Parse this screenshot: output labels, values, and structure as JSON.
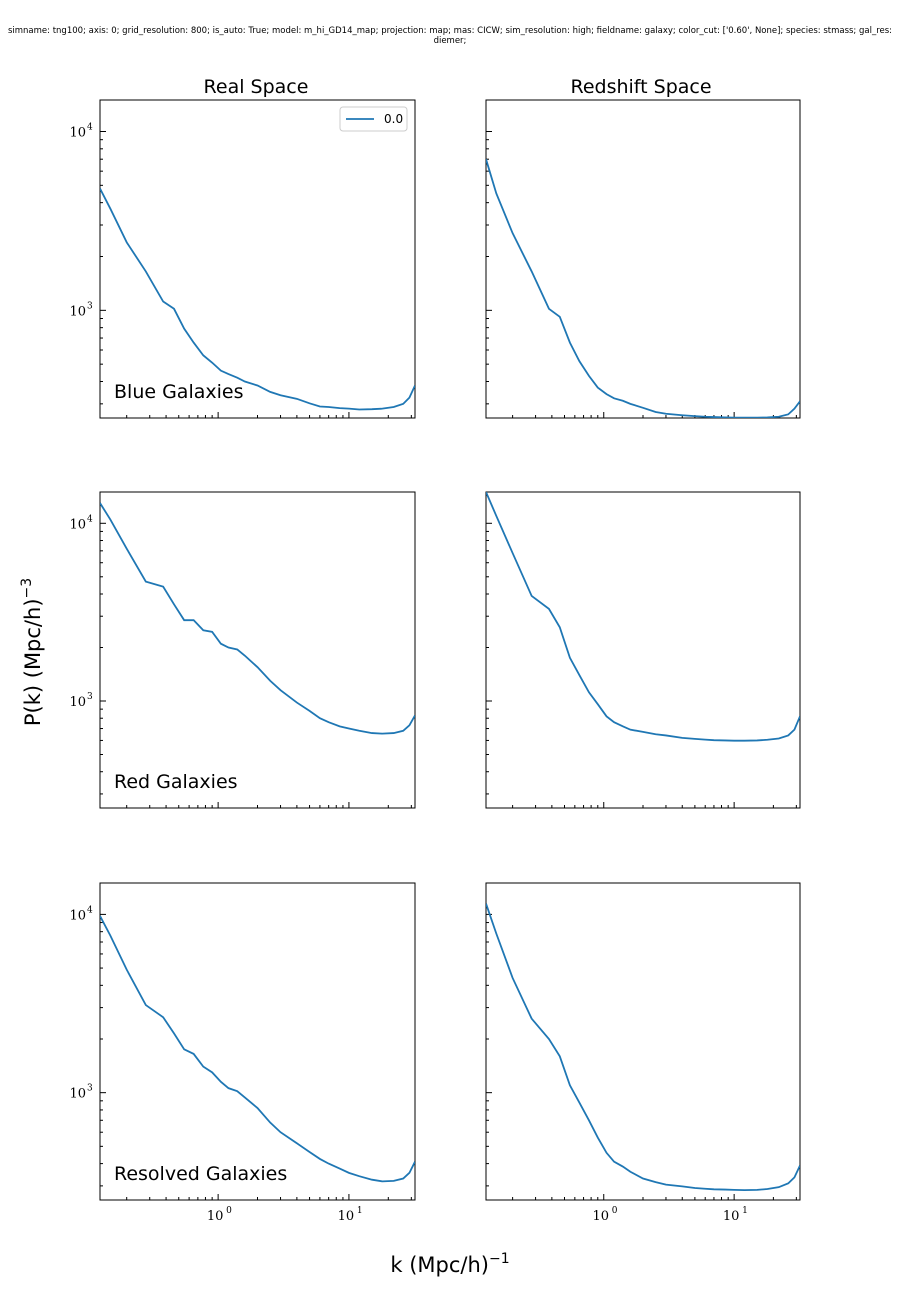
{
  "suptitle": {
    "line1": "simname: tng100; axis: 0; grid_resolution: 800; is_auto: True; model: m_hi_GD14_map; projection: map; mas: CICW; sim_resolution: high; fieldname: galaxy; color_cut: ['0.60', None]; species: stmass; gal_res:",
    "line2": "diemer;"
  },
  "colors": {
    "line": "#1f77b4",
    "axes": "#000000"
  },
  "chart_data": {
    "type": "line",
    "xscale": "log",
    "yscale": "log",
    "xlim": [
      0.125,
      32
    ],
    "ylabel": "P(k) (Mpc/h)^-3",
    "xlabel": "k (Mpc/h)^-1",
    "column_titles": [
      "Real Space",
      "Redshift Space"
    ],
    "row_labels": [
      "Blue Galaxies",
      "Red Galaxies",
      "Resolved Galaxies"
    ],
    "legend": {
      "placement": "upper-right",
      "panel": 0,
      "entries": [
        "0.0"
      ]
    },
    "x_ticks": [
      {
        "base": "10",
        "exp": "0",
        "value": 1
      },
      {
        "base": "10",
        "exp": "1",
        "value": 10
      }
    ],
    "y_ticks": [
      {
        "base": "10",
        "exp": "3",
        "value": 1000
      },
      {
        "base": "10",
        "exp": "4",
        "value": 10000
      }
    ],
    "panels": [
      {
        "row": "Blue Galaxies",
        "col": "Real Space",
        "ylim": [
          250,
          15000
        ],
        "series": [
          {
            "name": "0.0",
            "x": [
              0.125,
              0.15,
              0.2,
              0.28,
              0.38,
              0.46,
              0.55,
              0.65,
              0.77,
              0.9,
              1.05,
              1.2,
              1.4,
              1.6,
              2.0,
              2.5,
              3.0,
              4.0,
              5.0,
              6.0,
              7.0,
              8.5,
              10.0,
              12.0,
              15.0,
              18.0,
              22.0,
              26.0,
              29.0,
              32.0
            ],
            "y": [
              4800,
              3700,
              2400,
              1650,
              1120,
              1020,
              790,
              660,
              560,
              510,
              460,
              440,
              420,
              400,
              380,
              350,
              335,
              320,
              302,
              290,
              288,
              284,
              282,
              279,
              280,
              282,
              288,
              300,
              325,
              380
            ]
          }
        ]
      },
      {
        "row": "Blue Galaxies",
        "col": "Redshift Space",
        "ylim": [
          250,
          15000
        ],
        "series": [
          {
            "name": "0.0",
            "x": [
              0.125,
              0.15,
              0.2,
              0.28,
              0.38,
              0.46,
              0.55,
              0.65,
              0.77,
              0.9,
              1.05,
              1.2,
              1.4,
              1.6,
              2.0,
              2.5,
              3.0,
              4.0,
              5.0,
              6.0,
              7.0,
              8.5,
              10.0,
              12.0,
              15.0,
              18.0,
              22.0,
              26.0,
              29.0,
              32.0
            ],
            "y": [
              7000,
              4500,
              2700,
              1650,
              1020,
              920,
              660,
              520,
              430,
              370,
              340,
              322,
              312,
              300,
              285,
              270,
              264,
              259,
              256,
              254,
              253,
              252,
              251,
              251,
              251,
              252,
              254,
              262,
              282,
              310
            ]
          }
        ]
      },
      {
        "row": "Red Galaxies",
        "col": "Real Space",
        "ylim": [
          250,
          15000
        ],
        "series": [
          {
            "name": "0.0",
            "x": [
              0.125,
              0.15,
              0.2,
              0.28,
              0.38,
              0.46,
              0.55,
              0.65,
              0.77,
              0.9,
              1.05,
              1.2,
              1.4,
              1.6,
              2.0,
              2.5,
              3.0,
              4.0,
              5.0,
              6.0,
              7.0,
              8.5,
              10.0,
              12.0,
              15.0,
              18.0,
              22.0,
              26.0,
              29.0,
              32.0
            ],
            "y": [
              13000,
              10500,
              7200,
              4700,
              4400,
              3500,
              2850,
              2850,
              2500,
              2450,
              2100,
              2000,
              1950,
              1800,
              1550,
              1300,
              1150,
              980,
              880,
              800,
              760,
              720,
              700,
              680,
              660,
              655,
              660,
              680,
              730,
              830
            ]
          }
        ]
      },
      {
        "row": "Red Galaxies",
        "col": "Redshift Space",
        "ylim": [
          250,
          15000
        ],
        "series": [
          {
            "name": "0.0",
            "x": [
              0.125,
              0.15,
              0.2,
              0.28,
              0.38,
              0.46,
              0.55,
              0.65,
              0.77,
              0.9,
              1.05,
              1.2,
              1.4,
              1.6,
              2.0,
              2.5,
              3.0,
              4.0,
              5.0,
              6.0,
              7.0,
              8.5,
              10.0,
              12.0,
              15.0,
              18.0,
              22.0,
              26.0,
              29.0,
              32.0
            ],
            "y": [
              15000,
              11000,
              6800,
              3900,
              3300,
              2600,
              1750,
              1400,
              1120,
              960,
              820,
              760,
              720,
              690,
              670,
              650,
              640,
              620,
              612,
              606,
              602,
              600,
              598,
              598,
              600,
              605,
              615,
              640,
              690,
              820
            ]
          }
        ]
      },
      {
        "row": "Resolved Galaxies",
        "col": "Real Space",
        "ylim": [
          250,
          15000
        ],
        "series": [
          {
            "name": "0.0",
            "x": [
              0.125,
              0.15,
              0.2,
              0.28,
              0.38,
              0.46,
              0.55,
              0.65,
              0.77,
              0.9,
              1.05,
              1.2,
              1.4,
              1.6,
              2.0,
              2.5,
              3.0,
              4.0,
              5.0,
              6.0,
              7.0,
              8.5,
              10.0,
              12.0,
              15.0,
              18.0,
              22.0,
              26.0,
              29.0,
              32.0
            ],
            "y": [
              9800,
              7600,
              4900,
              3100,
              2650,
              2150,
              1750,
              1650,
              1400,
              1300,
              1150,
              1060,
              1020,
              940,
              820,
              680,
              600,
              520,
              465,
              425,
              400,
              375,
              355,
              340,
              325,
              318,
              320,
              330,
              355,
              410
            ]
          }
        ]
      },
      {
        "row": "Resolved Galaxies",
        "col": "Redshift Space",
        "ylim": [
          250,
          15000
        ],
        "series": [
          {
            "name": "0.0",
            "x": [
              0.125,
              0.15,
              0.2,
              0.28,
              0.38,
              0.46,
              0.55,
              0.65,
              0.77,
              0.9,
              1.05,
              1.2,
              1.4,
              1.6,
              2.0,
              2.5,
              3.0,
              4.0,
              5.0,
              6.0,
              7.0,
              8.5,
              10.0,
              12.0,
              15.0,
              18.0,
              22.0,
              26.0,
              29.0,
              32.0
            ],
            "y": [
              11500,
              7800,
              4400,
              2600,
              2000,
              1600,
              1100,
              880,
              700,
              560,
              460,
              410,
              385,
              360,
              330,
              315,
              305,
              298,
              292,
              289,
              287,
              286,
              285,
              284,
              285,
              288,
              295,
              310,
              335,
              390
            ]
          }
        ]
      }
    ]
  }
}
